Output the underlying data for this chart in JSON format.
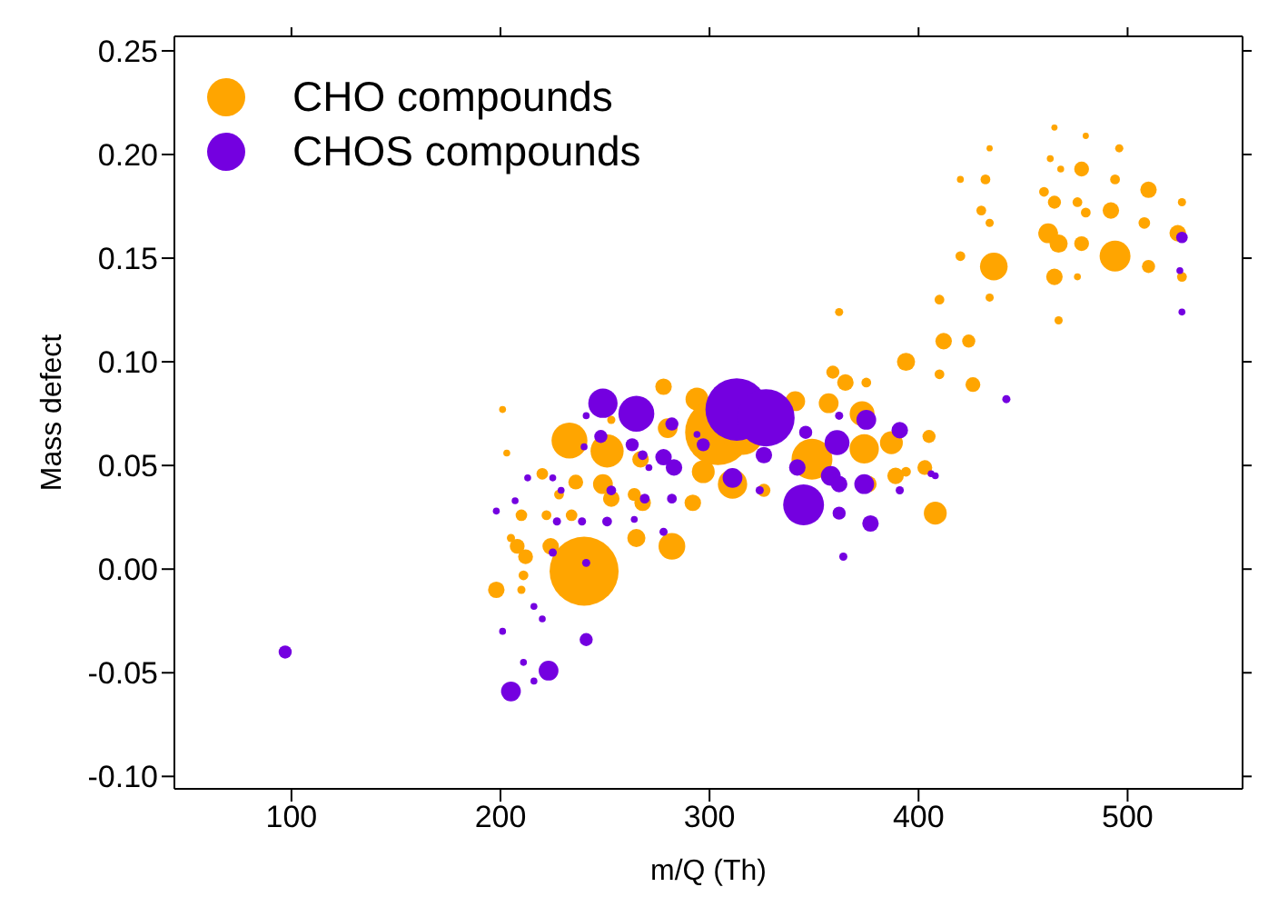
{
  "chart_data": {
    "type": "bubble",
    "xlabel": "m/Q (Th)",
    "ylabel": "Mass defect",
    "xlim": [
      44,
      555
    ],
    "ylim": [
      -0.106,
      0.257
    ],
    "xticks": [
      100,
      200,
      300,
      400,
      500
    ],
    "yticks": [
      {
        "value": -0.1,
        "label": "-0.10"
      },
      {
        "value": -0.05,
        "label": "-0.05"
      },
      {
        "value": 0,
        "label": "0.00"
      },
      {
        "value": 0.05,
        "label": "0.05"
      },
      {
        "value": 0.1,
        "label": "0.10"
      },
      {
        "value": 0.15,
        "label": "0.15"
      },
      {
        "value": 0.2,
        "label": "0.20"
      },
      {
        "value": 0.25,
        "label": "0.25"
      }
    ],
    "legend": "top left",
    "series": [
      {
        "name": "CHO compounds",
        "color": "#ffa500",
        "x": [
          198,
          201,
          203,
          205,
          208,
          210,
          212,
          211,
          210,
          220,
          222,
          224,
          228,
          233,
          234,
          236,
          240,
          249,
          251,
          253,
          253,
          264,
          265,
          267,
          268,
          278,
          280,
          282,
          292,
          294,
          297,
          304,
          311,
          316,
          326,
          341,
          349,
          357,
          359,
          362,
          365,
          373,
          374,
          375,
          376,
          387,
          389,
          394,
          394,
          403,
          405,
          408,
          410,
          410,
          412,
          420,
          420,
          424,
          426,
          430,
          432,
          434,
          434,
          436,
          434,
          460,
          463,
          465,
          465,
          462,
          467,
          465,
          467,
          468,
          476,
          476,
          478,
          478,
          480,
          480,
          492,
          494,
          496,
          494,
          508,
          510,
          510,
          526,
          524,
          526
        ],
        "values": [
          -0.01,
          0.077,
          0.056,
          0.015,
          0.011,
          0.026,
          0.006,
          -0.003,
          -0.01,
          0.046,
          0.026,
          0.011,
          0.036,
          0.062,
          0.026,
          0.042,
          -0.001,
          0.041,
          0.057,
          0.034,
          0.072,
          0.036,
          0.015,
          0.053,
          0.032,
          0.088,
          0.068,
          0.011,
          0.032,
          0.082,
          0.047,
          0.066,
          0.041,
          0.065,
          0.038,
          0.081,
          0.053,
          0.08,
          0.095,
          0.124,
          0.09,
          0.075,
          0.058,
          0.09,
          0.041,
          0.061,
          0.045,
          0.1,
          0.047,
          0.049,
          0.064,
          0.027,
          0.094,
          0.13,
          0.11,
          0.151,
          0.188,
          0.11,
          0.089,
          0.173,
          0.188,
          0.167,
          0.131,
          0.146,
          0.203,
          0.182,
          0.198,
          0.213,
          0.177,
          0.162,
          0.157,
          0.141,
          0.12,
          0.193,
          0.177,
          0.141,
          0.193,
          0.157,
          0.209,
          0.172,
          0.173,
          0.151,
          0.203,
          0.188,
          0.167,
          0.183,
          0.146,
          0.177,
          0.162,
          0.141
        ],
        "sizes": [
          0.057,
          0.01,
          0.01,
          0.014,
          0.046,
          0.028,
          0.046,
          0.02,
          0.014,
          0.028,
          0.02,
          0.057,
          0.02,
          0.27,
          0.028,
          0.046,
          1,
          0.082,
          0.23,
          0.057,
          0.014,
          0.036,
          0.069,
          0.057,
          0.057,
          0.057,
          0.082,
          0.15,
          0.057,
          0.11,
          0.11,
          0.9,
          0.18,
          0.35,
          0.036,
          0.082,
          0.35,
          0.082,
          0.036,
          0.014,
          0.057,
          0.13,
          0.18,
          0.02,
          0.057,
          0.11,
          0.057,
          0.069,
          0.02,
          0.046,
          0.036,
          0.11,
          0.02,
          0.02,
          0.057,
          0.02,
          0.01,
          0.036,
          0.046,
          0.02,
          0.02,
          0.014,
          0.014,
          0.16,
          0.008,
          0.02,
          0.01,
          0.008,
          0.036,
          0.082,
          0.069,
          0.057,
          0.014,
          0.01,
          0.02,
          0.01,
          0.046,
          0.046,
          0.008,
          0.02,
          0.057,
          0.2,
          0.014,
          0.02,
          0.028,
          0.057,
          0.036,
          0.014,
          0.057,
          0.02
        ]
      },
      {
        "name": "CHOS compounds",
        "color": "#7400e0",
        "x": [
          97,
          198,
          201,
          205,
          207,
          213,
          211,
          216,
          216,
          220,
          223,
          225,
          227,
          229,
          225,
          239,
          240,
          241,
          241,
          241,
          249,
          248,
          251,
          253,
          264,
          265,
          263,
          268,
          269,
          271,
          278,
          278,
          282,
          283,
          282,
          294,
          297,
          313,
          327,
          311,
          326,
          324,
          345,
          342,
          346,
          361,
          358,
          362,
          362,
          364,
          362,
          374,
          375,
          377,
          391,
          391,
          406,
          408,
          442,
          526,
          525,
          526
        ],
        "values": [
          -0.04,
          0.028,
          -0.03,
          -0.059,
          0.033,
          0.044,
          -0.045,
          -0.018,
          -0.054,
          -0.024,
          -0.049,
          0.044,
          0.023,
          0.038,
          0.008,
          0.023,
          0.059,
          -0.034,
          0.003,
          0.074,
          0.08,
          0.064,
          0.023,
          0.038,
          0.024,
          0.075,
          0.06,
          0.055,
          0.034,
          0.049,
          0.018,
          0.054,
          0.07,
          0.049,
          0.034,
          0.065,
          0.06,
          0.077,
          0.073,
          0.044,
          0.055,
          0.038,
          0.031,
          0.049,
          0.066,
          0.061,
          0.045,
          0.041,
          0.027,
          0.006,
          0.074,
          0.041,
          0.072,
          0.022,
          0.067,
          0.038,
          0.046,
          0.045,
          0.082,
          0.16,
          0.144,
          0.124
        ],
        "sizes": [
          0.036,
          0.01,
          0.01,
          0.082,
          0.01,
          0.01,
          0.01,
          0.01,
          0.01,
          0.01,
          0.082,
          0.01,
          0.014,
          0.01,
          0.014,
          0.014,
          0.01,
          0.036,
          0.014,
          0.01,
          0.18,
          0.036,
          0.02,
          0.02,
          0.01,
          0.27,
          0.036,
          0.02,
          0.02,
          0.01,
          0.014,
          0.057,
          0.036,
          0.057,
          0.02,
          0.01,
          0.036,
          0.82,
          0.69,
          0.082,
          0.057,
          0.014,
          0.35,
          0.057,
          0.036,
          0.13,
          0.082,
          0.057,
          0.036,
          0.014,
          0.014,
          0.082,
          0.082,
          0.057,
          0.057,
          0.014,
          0.01,
          0.01,
          0.014,
          0.028,
          0.01,
          0.01
        ]
      }
    ]
  }
}
